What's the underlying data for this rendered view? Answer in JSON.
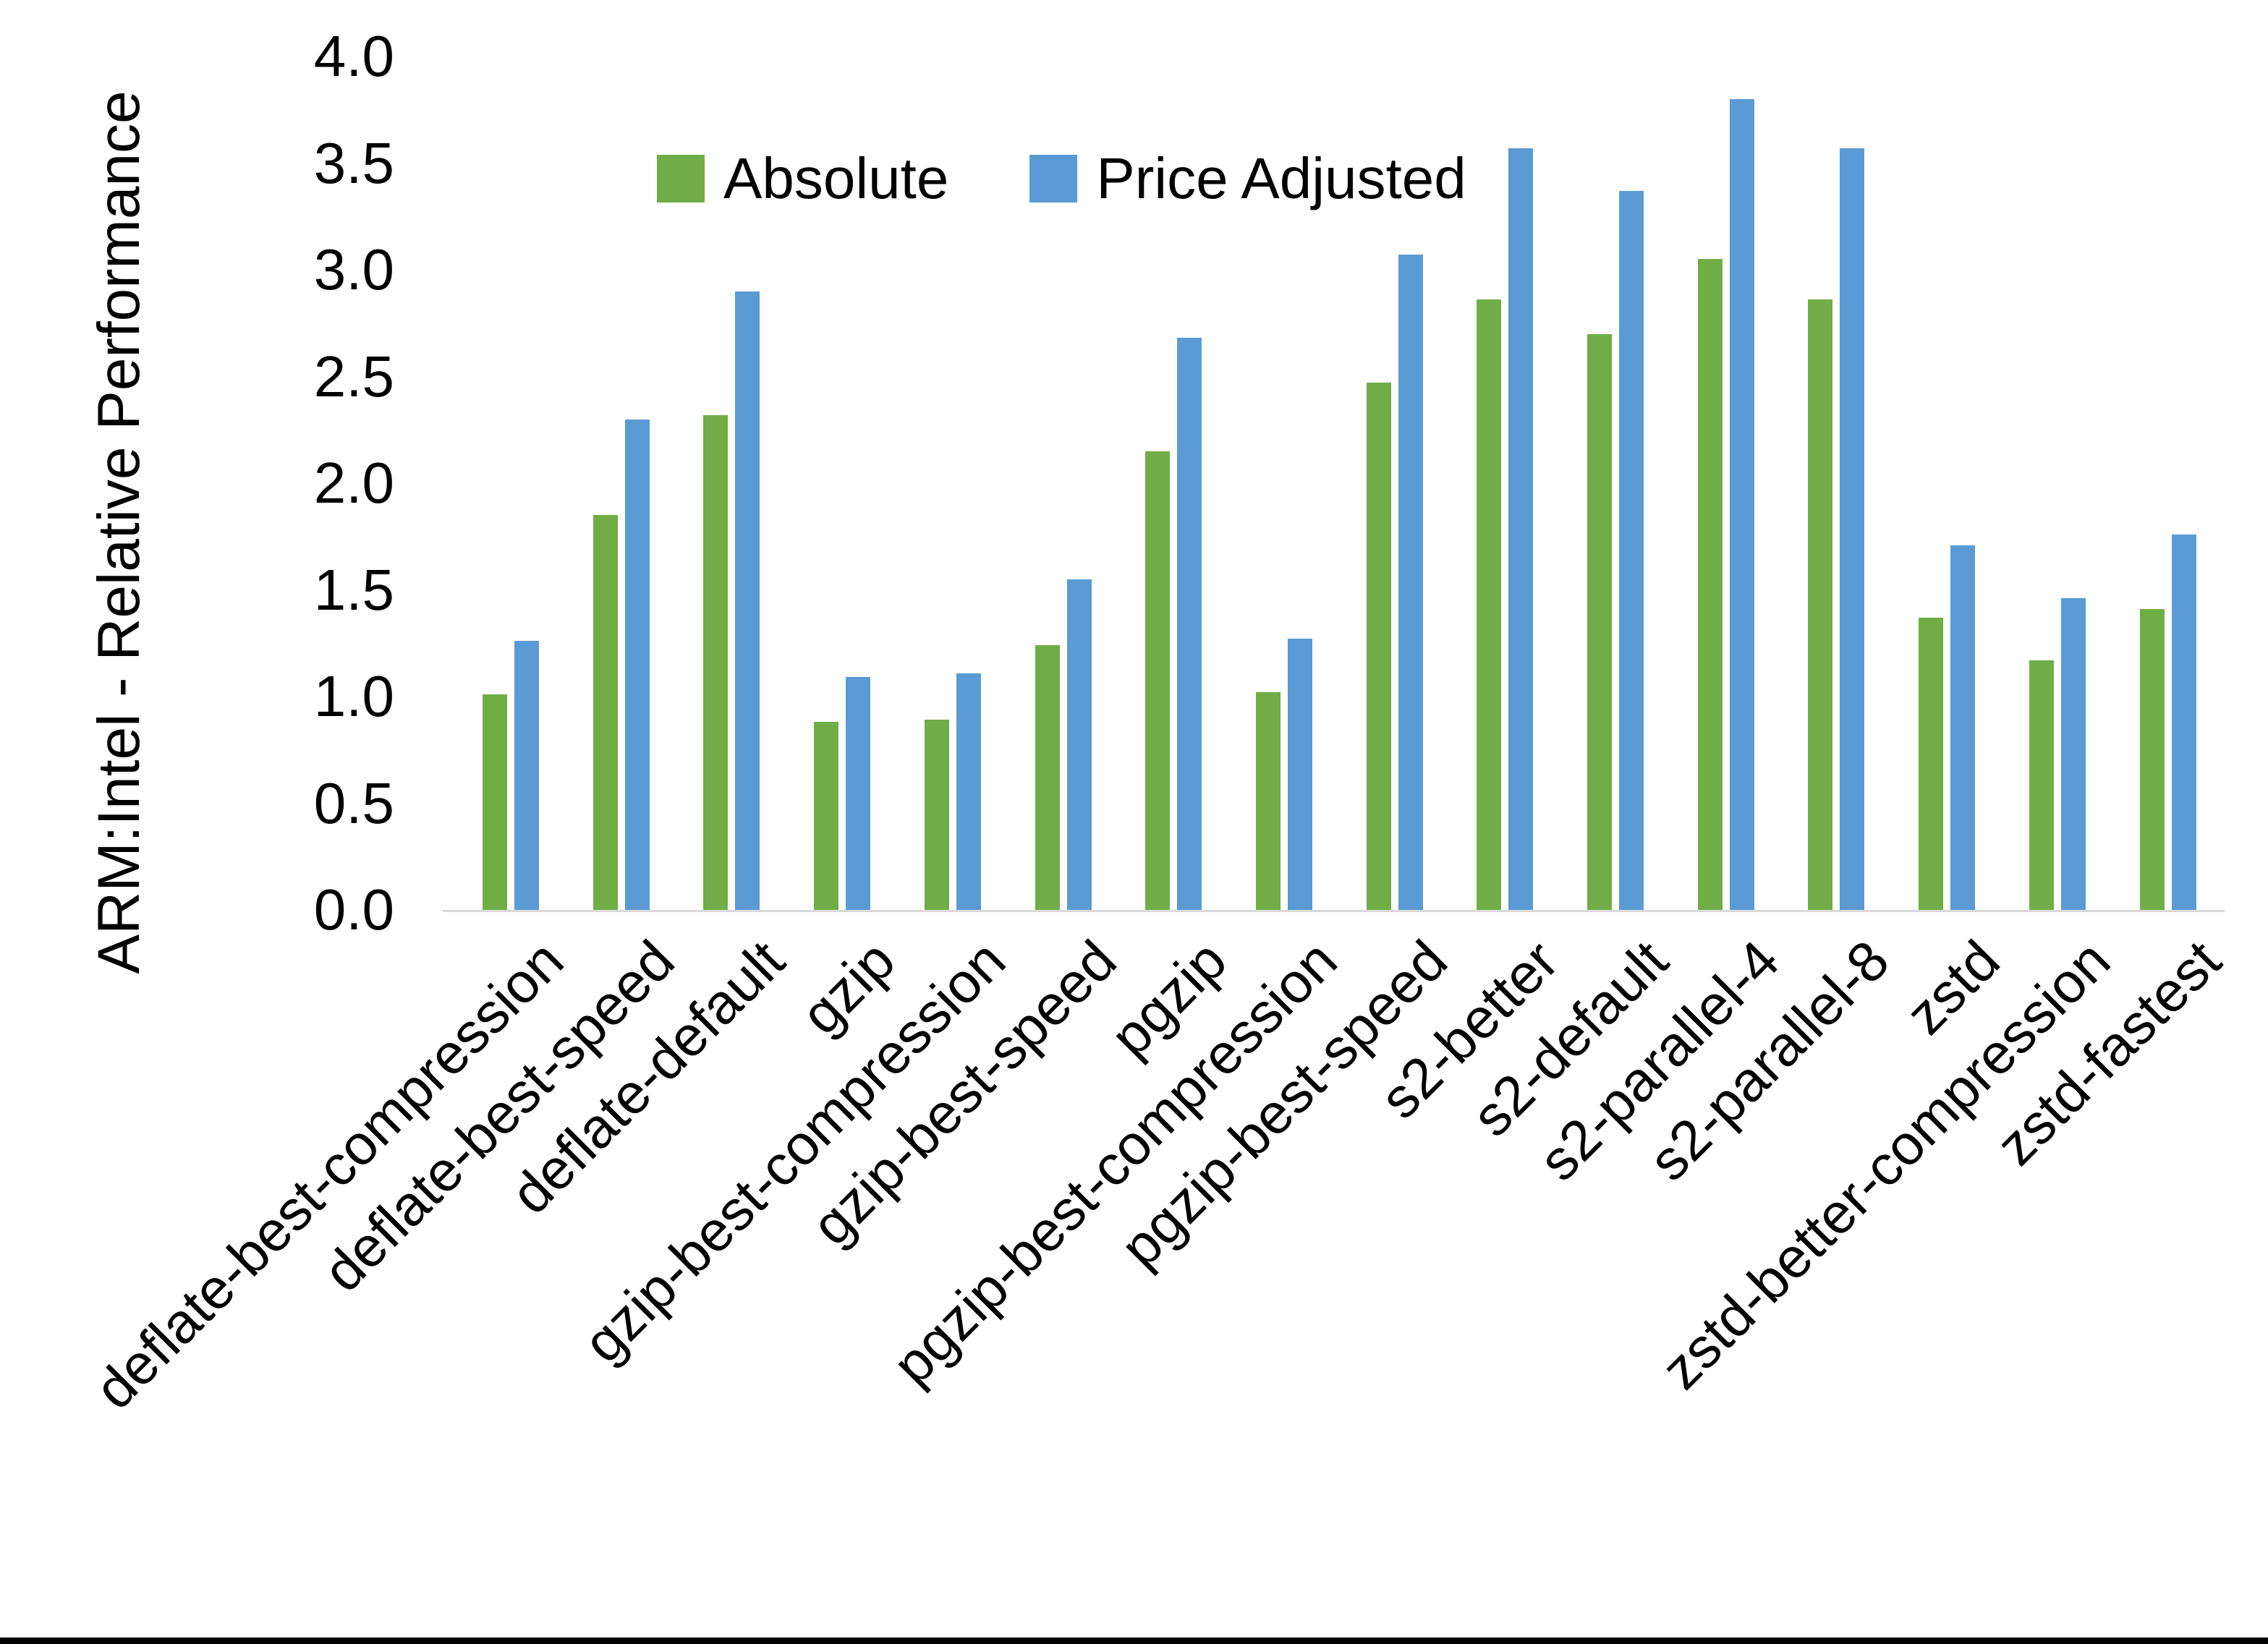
{
  "chart_data": {
    "type": "bar",
    "title": "",
    "xlabel": "",
    "ylabel": "ARM:Intel - Relative Performance",
    "ylim": [
      0.0,
      4.0
    ],
    "yticks": [
      "0.0",
      "0.5",
      "1.0",
      "1.5",
      "2.0",
      "2.5",
      "3.0",
      "3.5",
      "4.0"
    ],
    "grid": false,
    "legend_position": "top-center",
    "background_color": "#ffffff",
    "axis_line_color": "#d9d9d9",
    "text_color": "#000000",
    "bottom_border_color": "#000000",
    "categories": [
      "deflate-best-compression",
      "deflate-best-speed",
      "deflate-default",
      "gzip",
      "gzip-best-compression",
      "gzip-best-speed",
      "pgzip",
      "pgzip-best-compression",
      "pgzip-best-speed",
      "s2-better",
      "s2-default",
      "s2-parallel-4",
      "s2-parallel-8",
      "zstd",
      "zstd-better-compression",
      "zstd-fastest"
    ],
    "series": [
      {
        "name": "Absolute",
        "color": "#70ad47",
        "values": [
          1.01,
          1.85,
          2.32,
          0.88,
          0.89,
          1.24,
          2.15,
          1.02,
          2.47,
          2.86,
          2.7,
          3.05,
          2.86,
          1.37,
          1.17,
          1.41
        ]
      },
      {
        "name": "Price Adjusted",
        "color": "#5b9bd5",
        "values": [
          1.26,
          2.3,
          2.9,
          1.09,
          1.11,
          1.55,
          2.68,
          1.27,
          3.07,
          3.57,
          3.37,
          3.8,
          3.57,
          1.71,
          1.46,
          1.76
        ]
      }
    ]
  }
}
